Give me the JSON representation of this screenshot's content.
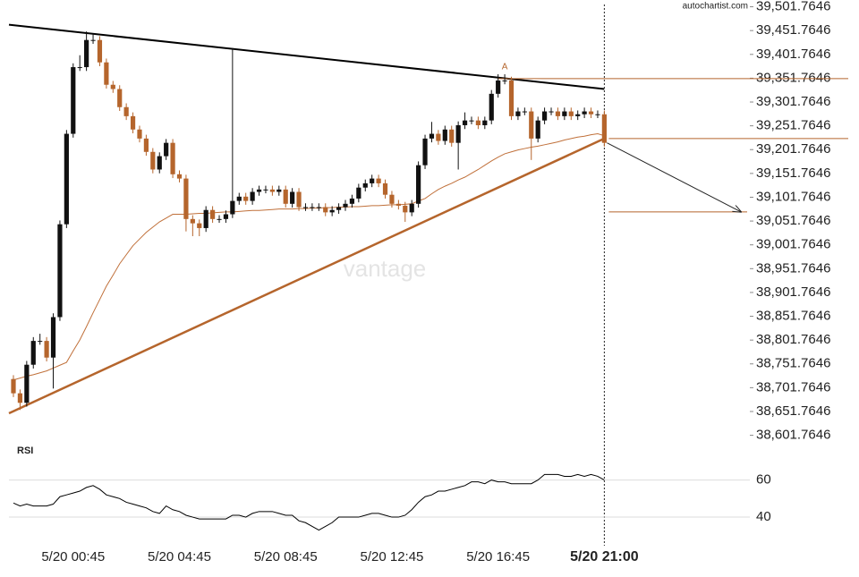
{
  "chart_data": [
    {
      "type": "candlestick",
      "source": "autochartist.com",
      "watermark": "vantage",
      "pattern_label": "A",
      "categories": [
        null,
        null,
        null,
        null,
        null,
        null,
        null,
        null,
        null,
        "5/20 00:45",
        null,
        null,
        null,
        null,
        null,
        null,
        null,
        null,
        null,
        null,
        null,
        null,
        null,
        null,
        null,
        "5/20 04:45",
        null,
        null,
        null,
        null,
        null,
        null,
        null,
        null,
        null,
        null,
        null,
        null,
        null,
        null,
        null,
        "5/20 08:45",
        null,
        null,
        null,
        null,
        null,
        null,
        null,
        null,
        null,
        null,
        null,
        null,
        null,
        null,
        null,
        "5/20 12:45",
        null,
        null,
        null,
        null,
        null,
        null,
        null,
        null,
        null,
        null,
        null,
        null,
        null,
        null,
        null,
        "5/20 16:45",
        null,
        null,
        null,
        null,
        null,
        null,
        null,
        null,
        null,
        null,
        null,
        null,
        null,
        null,
        null,
        "5/20 21:00"
      ],
      "open": [
        38720,
        38690,
        38670,
        38750,
        38800,
        38800,
        38765,
        38850,
        39045,
        39235,
        39375,
        39375,
        39432,
        39432,
        39385,
        39338,
        39329,
        39291,
        39272,
        39244,
        39225,
        39197,
        39160,
        39188,
        39216,
        39150,
        39141,
        39056,
        39047,
        39037,
        39075,
        39056,
        39056,
        39066,
        39094,
        39103,
        39094,
        39113,
        39118,
        39118,
        39113,
        39118,
        39088,
        39113,
        39081,
        39081,
        39081,
        39081,
        39070,
        39075,
        39081,
        39088,
        39099,
        39122,
        39131,
        39141,
        39131,
        39107,
        39088,
        39084,
        39070,
        39088,
        39169,
        39225,
        39235,
        39220,
        39244,
        39216,
        39253,
        39263,
        39263,
        39253,
        39263,
        39319,
        39347,
        39347,
        39272,
        39282,
        39282,
        39225,
        39263,
        39282,
        39282,
        39272,
        39282,
        39272,
        39276,
        39282,
        39276,
        39276
      ],
      "high": [
        38728,
        38698,
        38758,
        38808,
        38815,
        38808,
        38858,
        39053,
        39243,
        39383,
        39400,
        39450,
        39445,
        39440,
        39393,
        39346,
        39337,
        39299,
        39280,
        39252,
        39233,
        39205,
        39196,
        39224,
        39224,
        39158,
        39149,
        39064,
        39055,
        39083,
        39083,
        39064,
        39074,
        39415,
        39111,
        39111,
        39121,
        39126,
        39126,
        39126,
        39126,
        39126,
        39121,
        39121,
        39089,
        39089,
        39089,
        39089,
        39083,
        39089,
        39096,
        39107,
        39130,
        39139,
        39149,
        39149,
        39139,
        39115,
        39096,
        39092,
        39096,
        39177,
        39233,
        39260,
        39243,
        39252,
        39252,
        39261,
        39280,
        39271,
        39271,
        39271,
        39327,
        39360,
        39360,
        39355,
        39290,
        39290,
        39290,
        39271,
        39290,
        39290,
        39290,
        39290,
        39290,
        39284,
        39290,
        39290,
        39284,
        39284
      ],
      "low": [
        38682,
        38655,
        38662,
        38742,
        38792,
        38757,
        38700,
        38842,
        39037,
        39227,
        39367,
        39367,
        39424,
        39377,
        39330,
        39321,
        39283,
        39264,
        39236,
        39217,
        39189,
        39152,
        39152,
        39180,
        39142,
        39133,
        39030,
        39020,
        39020,
        39029,
        39048,
        39048,
        39048,
        39058,
        39086,
        39086,
        39086,
        39105,
        39110,
        39105,
        39105,
        39080,
        39080,
        39073,
        39073,
        39073,
        39073,
        39062,
        39062,
        39067,
        39073,
        39080,
        39091,
        39114,
        39123,
        39123,
        39099,
        39080,
        39076,
        39050,
        39062,
        39080,
        39161,
        39217,
        39212,
        39212,
        39208,
        39160,
        39245,
        39255,
        39245,
        39245,
        39255,
        39311,
        39339,
        39264,
        39264,
        39274,
        39180,
        39217,
        39255,
        39274,
        39264,
        39264,
        39264,
        39264,
        39268,
        39268,
        39268,
        39208
      ],
      "close": [
        38690,
        38670,
        38750,
        38800,
        38800,
        38765,
        38850,
        39045,
        39235,
        39375,
        39375,
        39432,
        39432,
        39385,
        39338,
        39329,
        39291,
        39272,
        39244,
        39225,
        39197,
        39160,
        39188,
        39216,
        39150,
        39141,
        39056,
        39047,
        39037,
        39075,
        39056,
        39056,
        39066,
        39094,
        39103,
        39094,
        39113,
        39118,
        39118,
        39113,
        39118,
        39088,
        39113,
        39081,
        39081,
        39081,
        39081,
        39070,
        39075,
        39081,
        39088,
        39099,
        39122,
        39131,
        39141,
        39131,
        39107,
        39088,
        39084,
        39070,
        39088,
        39169,
        39225,
        39235,
        39220,
        39244,
        39216,
        39253,
        39263,
        39263,
        39253,
        39263,
        39319,
        39347,
        39347,
        39272,
        39282,
        39282,
        39225,
        39263,
        39282,
        39282,
        39272,
        39282,
        39272,
        39276,
        39282,
        39276,
        39276,
        39216
      ],
      "up_color": "#111111",
      "down_color": "#b5652c",
      "moving_average": {
        "color": "#c0703a",
        "values": [
          38718,
          38722,
          38726,
          38729,
          38733,
          38737,
          38743,
          38749,
          38755,
          38779,
          38802,
          38830,
          38859,
          38887,
          38915,
          38938,
          38962,
          38981,
          39000,
          39014,
          39028,
          39039,
          39050,
          39058,
          39066,
          39066,
          39066,
          39067,
          39068,
          39068,
          39069,
          39070,
          39071,
          39071,
          39072,
          39073,
          39074,
          39074,
          39075,
          39076,
          39077,
          39077,
          39077,
          39078,
          39078,
          39079,
          39079,
          39080,
          39080,
          39081,
          39081,
          39082,
          39082,
          39083,
          39084,
          39084,
          39085,
          39086,
          39086,
          39087,
          39088,
          39094,
          39099,
          39109,
          39118,
          39125,
          39131,
          39138,
          39144,
          39152,
          39160,
          39169,
          39178,
          39186,
          39193,
          39197,
          39201,
          39204,
          39207,
          39209,
          39212,
          39215,
          39218,
          39222,
          39225,
          39228,
          39230,
          39233,
          39235,
          39231
        ]
      },
      "resistance": {
        "color": "#000000",
        "values": [
          39464,
          39329
        ]
      },
      "support": {
        "color": "#b5652c",
        "values": [
          38648,
          39225
        ]
      },
      "levels": [
        39351,
        39225,
        39071
      ],
      "level_color": "#b5652c",
      "ylim": [
        38586,
        39516
      ],
      "yticks": [
        {
          "value": 39501.7646,
          "label": "39,501.7646"
        },
        {
          "value": 39451.7646,
          "label": "39,451.7646"
        },
        {
          "value": 39401.7646,
          "label": "39,401.7646"
        },
        {
          "value": 39351.7646,
          "label": "39,351.7646"
        },
        {
          "value": 39301.7646,
          "label": "39,301.7646"
        },
        {
          "value": 39251.7646,
          "label": "39,251.7646"
        },
        {
          "value": 39201.7646,
          "label": "39,201.7646"
        },
        {
          "value": 39151.7646,
          "label": "39,151.7646"
        },
        {
          "value": 39101.7646,
          "label": "39,101.7646"
        },
        {
          "value": 39051.7646,
          "label": "39,051.7646"
        },
        {
          "value": 39001.7646,
          "label": "39,001.7646"
        },
        {
          "value": 38951.7646,
          "label": "38,951.7646"
        },
        {
          "value": 38901.7646,
          "label": "38,901.7646"
        },
        {
          "value": 38851.7646,
          "label": "38,851.7646"
        },
        {
          "value": 38801.7646,
          "label": "38,801.7646"
        },
        {
          "value": 38751.7646,
          "label": "38,751.7646"
        },
        {
          "value": 38701.7646,
          "label": "38,701.7646"
        },
        {
          "value": 38651.7646,
          "label": "38,651.7646"
        },
        {
          "value": 38601.7646,
          "label": "38,601.7646"
        }
      ]
    },
    {
      "type": "line",
      "title": "RSI",
      "ylim": [
        27,
        68
      ],
      "yticks": [
        40,
        60
      ],
      "grid": true,
      "series": [
        {
          "color": "#000000",
          "values": [
            47.6,
            46,
            47,
            46,
            46,
            46,
            47,
            51,
            52,
            53,
            54,
            56,
            57,
            55,
            52,
            51,
            50,
            48,
            47,
            46,
            45,
            43,
            42,
            46,
            44,
            43,
            41,
            40,
            39,
            39,
            39,
            39,
            39,
            41,
            41,
            40,
            42,
            43,
            43,
            43,
            42,
            41,
            41,
            38,
            37,
            35,
            33,
            35,
            37,
            40,
            40,
            40,
            40,
            41,
            42,
            42,
            41,
            40,
            40,
            41,
            44,
            48,
            51,
            52,
            54,
            54,
            55,
            56,
            57,
            59,
            59,
            58,
            60,
            59,
            59,
            58,
            58,
            58,
            58,
            60,
            63,
            63,
            63,
            62,
            62,
            63,
            62,
            63,
            62,
            60
          ]
        }
      ]
    }
  ]
}
